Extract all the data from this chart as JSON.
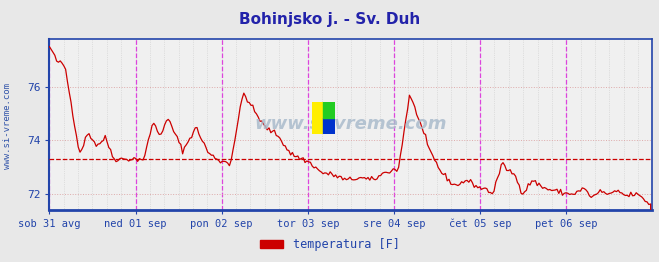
{
  "title": "Bohinjsko j. - Sv. Duh",
  "title_color": "#2222aa",
  "title_fontsize": 11,
  "bg_color": "#e8e8e8",
  "plot_bg_color": "#f0f0f0",
  "ylabel_text": "www.si-vreme.com",
  "ylabel_color": "#3355aa",
  "legend_label": "temperatura [F]",
  "legend_color": "#cc0000",
  "ylim": [
    71.4,
    77.8
  ],
  "yticks": [
    72,
    74,
    76
  ],
  "x_labels": [
    "sob 31 avg",
    "ned 01 sep",
    "pon 02 sep",
    "tor 03 sep",
    "sre 04 sep",
    "čet 05 sep",
    "pet 06 sep"
  ],
  "mean_value": 73.3,
  "line_color": "#cc0000",
  "grid_color_major": "#ddaaaa",
  "grid_color_minor": "#cccccc",
  "vgrid_color": "#dd44dd",
  "axis_color": "#2244aa",
  "watermark_text": "www.si-vreme.com",
  "watermark_color": "#aabbcc",
  "num_points": 336
}
